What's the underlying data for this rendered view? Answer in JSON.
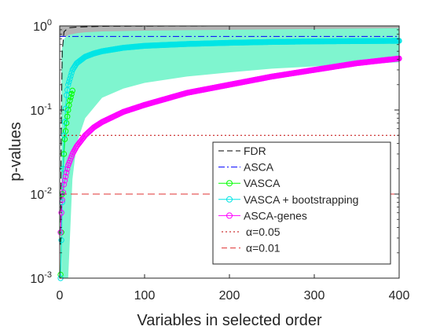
{
  "chart_data": {
    "type": "line",
    "title": "",
    "xlabel": "Variables in selected order",
    "ylabel": "p-values",
    "xlim": [
      0,
      400
    ],
    "ylim": [
      0.001,
      1
    ],
    "yscale": "log",
    "grid": false,
    "legend_placement": "bottom-right",
    "x_ticks": [
      0,
      100,
      200,
      300,
      400
    ],
    "x_tick_labels": [
      "0",
      "100",
      "200",
      "300",
      "400"
    ],
    "y_ticks": [
      0.001,
      0.01,
      0.1,
      1
    ],
    "y_tick_labels": [
      {
        "base": "10",
        "exp": "-3"
      },
      {
        "base": "10",
        "exp": "-2"
      },
      {
        "base": "10",
        "exp": "-1"
      },
      {
        "base": "10",
        "exp": "0"
      }
    ],
    "series": [
      {
        "name": "FDR",
        "style": "dashed",
        "color": "#000000",
        "x": [
          1,
          2,
          3,
          5,
          10,
          20,
          50,
          100,
          200,
          300,
          400
        ],
        "y": [
          0.0025,
          0.1,
          0.5,
          0.85,
          0.95,
          0.97,
          0.99,
          0.995,
          1.0,
          1.0,
          1.0
        ],
        "band": {
          "color": "#b3b3b3",
          "x": [
            0,
            100,
            200,
            300,
            400
          ],
          "lower": [
            0.75,
            0.8,
            0.84,
            0.88,
            0.92
          ],
          "upper": [
            1.0,
            1.0,
            1.0,
            1.0,
            1.0
          ]
        }
      },
      {
        "name": "ASCA",
        "style": "dashdot",
        "color": "#0000ff",
        "x": [
          0,
          400
        ],
        "y": [
          0.75,
          0.75
        ]
      },
      {
        "name": "VASCA",
        "style": "solid-circle",
        "color": "#00ff00",
        "x": [
          1,
          2,
          3,
          4,
          5,
          6,
          8,
          10,
          12,
          15
        ],
        "y": [
          0.0011,
          0.0035,
          0.01,
          0.02,
          0.03,
          0.045,
          0.07,
          0.1,
          0.13,
          0.17
        ]
      },
      {
        "name": "VASCA + bootstrapping",
        "style": "solid-circle",
        "color": "#00e5e5",
        "x": [
          1,
          3,
          5,
          8,
          10,
          15,
          20,
          30,
          40,
          50,
          75,
          100,
          150,
          200,
          250,
          300,
          350,
          400
        ],
        "y": [
          0.001,
          0.008,
          0.05,
          0.15,
          0.2,
          0.3,
          0.36,
          0.43,
          0.47,
          0.5,
          0.55,
          0.58,
          0.61,
          0.63,
          0.645,
          0.655,
          0.66,
          0.665
        ],
        "band": {
          "color": "#7ff5cf",
          "x": [
            2,
            5,
            8,
            10,
            15,
            20,
            30,
            50,
            75,
            100,
            150,
            200,
            250,
            300,
            350,
            400
          ],
          "lower": [
            0.001,
            0.001,
            0.001,
            0.001,
            0.015,
            0.04,
            0.08,
            0.14,
            0.18,
            0.21,
            0.25,
            0.28,
            0.31,
            0.33,
            0.35,
            0.37
          ],
          "upper": [
            0.5,
            0.7,
            0.75,
            0.78,
            0.8,
            0.82,
            0.84,
            0.86,
            0.87,
            0.88,
            0.89,
            0.9,
            0.91,
            0.92,
            0.93,
            0.94
          ]
        }
      },
      {
        "name": "ASCA-genes",
        "style": "solid-circle",
        "color": "#ff00ff",
        "x": [
          1,
          2,
          3,
          5,
          8,
          10,
          15,
          20,
          30,
          40,
          50,
          75,
          100,
          150,
          200,
          250,
          300,
          350,
          400
        ],
        "y": [
          0.0035,
          0.006,
          0.0085,
          0.013,
          0.018,
          0.022,
          0.03,
          0.037,
          0.05,
          0.062,
          0.072,
          0.095,
          0.115,
          0.16,
          0.2,
          0.25,
          0.3,
          0.36,
          0.41
        ]
      },
      {
        "name": "α=0.05",
        "style": "dotted",
        "color": "#c00000",
        "x": [
          0,
          400
        ],
        "y": [
          0.05,
          0.05
        ]
      },
      {
        "name": "α=0.01",
        "style": "dashed",
        "color": "#e03030",
        "x": [
          0,
          400
        ],
        "y": [
          0.01,
          0.01
        ]
      }
    ]
  },
  "legend": {
    "entries": [
      "FDR",
      "ASCA",
      "VASCA",
      "VASCA + bootstrapping",
      "ASCA-genes",
      "α=0.05",
      "α=0.01"
    ]
  }
}
